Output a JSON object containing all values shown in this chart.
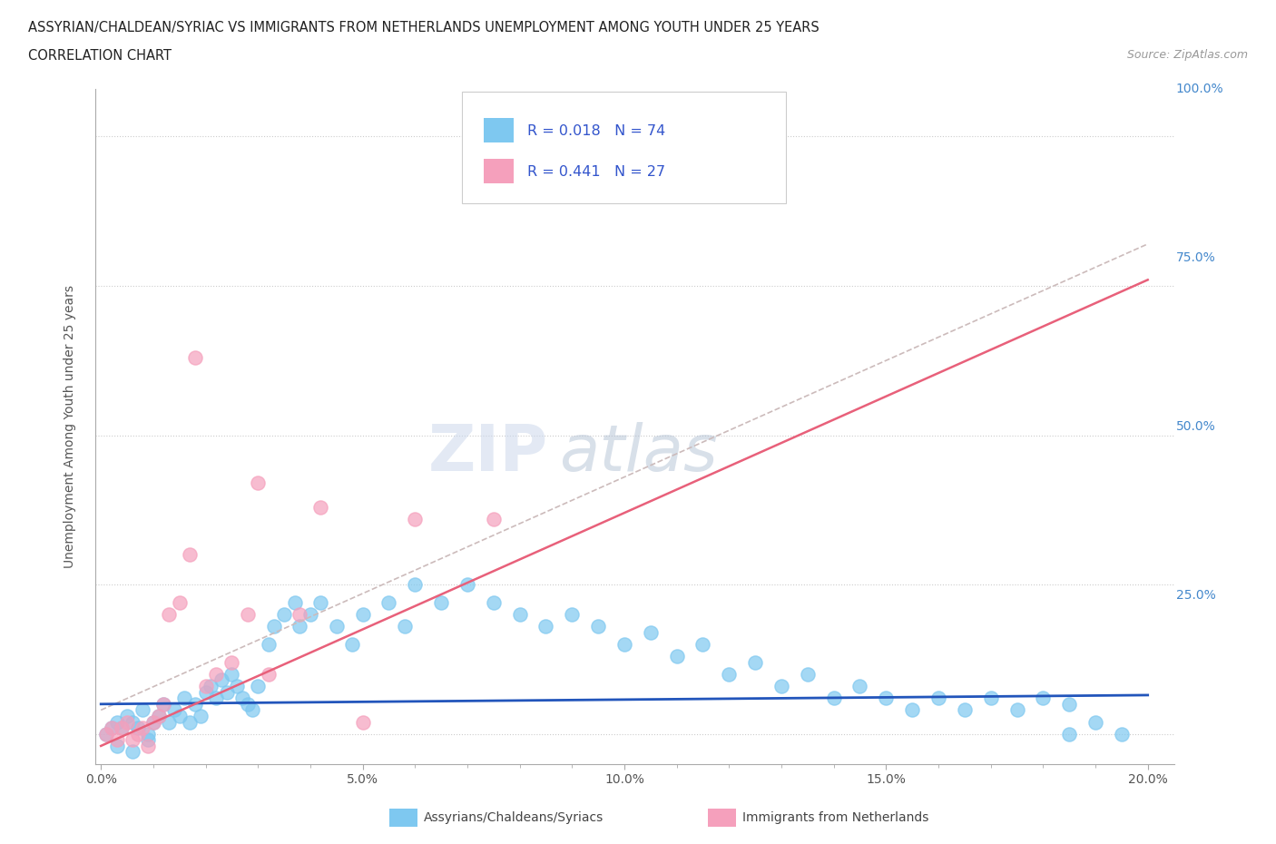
{
  "title_line1": "ASSYRIAN/CHALDEAN/SYRIAC VS IMMIGRANTS FROM NETHERLANDS UNEMPLOYMENT AMONG YOUTH UNDER 25 YEARS",
  "title_line2": "CORRELATION CHART",
  "source_text": "Source: ZipAtlas.com",
  "ylabel": "Unemployment Among Youth under 25 years",
  "xlim": [
    -0.001,
    0.205
  ],
  "ylim": [
    -0.05,
    1.08
  ],
  "yticks": [
    0.0,
    0.25,
    0.5,
    0.75,
    1.0
  ],
  "ytick_labels": [
    "",
    "25.0%",
    "50.0%",
    "75.0%",
    "100.0%"
  ],
  "xticks": [
    0.0,
    0.05,
    0.1,
    0.15,
    0.2
  ],
  "xtick_labels": [
    "0.0%",
    "5.0%",
    "10.0%",
    "15.0%",
    "20.0%"
  ],
  "blue_color": "#7EC8F0",
  "pink_color": "#F5A0BC",
  "blue_line_color": "#2255BB",
  "pink_line_color": "#E8607A",
  "pink_dash_color": "#E0A0B0",
  "watermark_zip": "ZIP",
  "watermark_atlas": "atlas",
  "legend_text1": "R = 0.018   N = 74",
  "legend_text2": "R = 0.441   N = 27",
  "legend_color": "#3355CC",
  "blue_scatter_x": [
    0.001,
    0.002,
    0.003,
    0.004,
    0.005,
    0.006,
    0.007,
    0.008,
    0.009,
    0.01,
    0.011,
    0.012,
    0.013,
    0.014,
    0.015,
    0.016,
    0.017,
    0.018,
    0.019,
    0.02,
    0.021,
    0.022,
    0.023,
    0.024,
    0.025,
    0.026,
    0.027,
    0.028,
    0.029,
    0.03,
    0.032,
    0.033,
    0.035,
    0.037,
    0.038,
    0.04,
    0.042,
    0.045,
    0.048,
    0.05,
    0.055,
    0.058,
    0.06,
    0.065,
    0.07,
    0.075,
    0.08,
    0.085,
    0.09,
    0.095,
    0.1,
    0.105,
    0.11,
    0.115,
    0.12,
    0.125,
    0.13,
    0.135,
    0.14,
    0.145,
    0.15,
    0.155,
    0.16,
    0.165,
    0.17,
    0.175,
    0.18,
    0.185,
    0.19,
    0.195,
    0.003,
    0.006,
    0.009,
    0.185
  ],
  "blue_scatter_y": [
    0.0,
    0.01,
    0.02,
    0.01,
    0.03,
    0.02,
    0.01,
    0.04,
    0.0,
    0.02,
    0.03,
    0.05,
    0.02,
    0.04,
    0.03,
    0.06,
    0.02,
    0.05,
    0.03,
    0.07,
    0.08,
    0.06,
    0.09,
    0.07,
    0.1,
    0.08,
    0.06,
    0.05,
    0.04,
    0.08,
    0.15,
    0.18,
    0.2,
    0.22,
    0.18,
    0.2,
    0.22,
    0.18,
    0.15,
    0.2,
    0.22,
    0.18,
    0.25,
    0.22,
    0.25,
    0.22,
    0.2,
    0.18,
    0.2,
    0.18,
    0.15,
    0.17,
    0.13,
    0.15,
    0.1,
    0.12,
    0.08,
    0.1,
    0.06,
    0.08,
    0.06,
    0.04,
    0.06,
    0.04,
    0.06,
    0.04,
    0.06,
    0.0,
    0.02,
    0.0,
    -0.02,
    -0.03,
    -0.01,
    0.05
  ],
  "pink_scatter_x": [
    0.001,
    0.002,
    0.003,
    0.004,
    0.005,
    0.006,
    0.007,
    0.008,
    0.009,
    0.01,
    0.011,
    0.012,
    0.013,
    0.015,
    0.017,
    0.018,
    0.02,
    0.022,
    0.025,
    0.028,
    0.03,
    0.032,
    0.038,
    0.042,
    0.05,
    0.06,
    0.075
  ],
  "pink_scatter_y": [
    0.0,
    0.01,
    -0.01,
    0.01,
    0.02,
    -0.01,
    0.0,
    0.01,
    -0.02,
    0.02,
    0.03,
    0.05,
    0.2,
    0.22,
    0.3,
    0.63,
    0.08,
    0.1,
    0.12,
    0.2,
    0.42,
    0.1,
    0.2,
    0.38,
    0.02,
    0.36,
    0.36
  ],
  "label_blue": "Assyrians/Chaldeans/Syriacs",
  "label_pink": "Immigrants from Netherlands"
}
